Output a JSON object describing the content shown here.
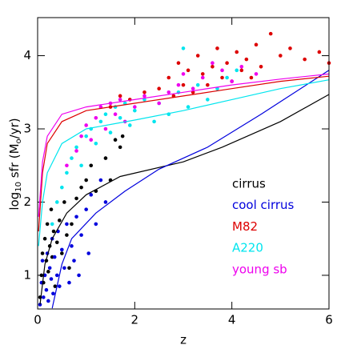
{
  "chart_data": {
    "type": "scatter",
    "xlabel": "z",
    "ylabel_parts": [
      "log",
      "10",
      " sfr  (M",
      "o",
      "/yr)"
    ],
    "xlim": [
      0,
      6
    ],
    "ylim": [
      0.54,
      4.52
    ],
    "xticks": [
      0,
      2,
      4,
      6
    ],
    "yticks": [
      1,
      2,
      3,
      4
    ],
    "series": [
      {
        "name": "cirrus",
        "color": "#000000",
        "x": [
          0.05,
          0.08,
          0.1,
          0.12,
          0.15,
          0.18,
          0.2,
          0.22,
          0.25,
          0.28,
          0.3,
          0.33,
          0.36,
          0.4,
          0.45,
          0.5,
          0.55,
          0.6,
          0.65,
          0.7,
          0.8,
          0.9,
          1.0,
          1.1,
          1.2,
          1.4,
          1.5,
          1.6,
          1.7,
          1.75
        ],
        "y": [
          0.7,
          1.0,
          1.3,
          0.9,
          1.5,
          1.2,
          1.7,
          1.05,
          1.4,
          1.9,
          1.25,
          1.6,
          0.85,
          1.45,
          1.75,
          1.3,
          2.0,
          1.55,
          1.1,
          1.7,
          2.05,
          2.2,
          2.3,
          2.5,
          2.15,
          2.6,
          2.3,
          2.85,
          2.75,
          2.9
        ],
        "curve_x": [
          0.05,
          0.15,
          0.3,
          0.6,
          1.0,
          1.7,
          3.0,
          3.8,
          5.0,
          6.0
        ],
        "curve_y": [
          0.6,
          1.15,
          1.5,
          1.85,
          2.1,
          2.35,
          2.55,
          2.75,
          3.1,
          3.47
        ]
      },
      {
        "name": "cool cirrus",
        "color": "#0000dd",
        "x": [
          0.05,
          0.08,
          0.1,
          0.12,
          0.15,
          0.18,
          0.2,
          0.22,
          0.25,
          0.28,
          0.3,
          0.32,
          0.35,
          0.4,
          0.42,
          0.45,
          0.5,
          0.55,
          0.6,
          0.65,
          0.7,
          0.75,
          0.8,
          0.85,
          0.9,
          1.0,
          1.05,
          1.1,
          1.2,
          1.3,
          1.4
        ],
        "y": [
          0.6,
          0.9,
          1.2,
          0.7,
          1.0,
          0.8,
          1.3,
          0.65,
          1.1,
          0.95,
          1.5,
          0.75,
          1.25,
          1.0,
          1.6,
          0.85,
          1.35,
          1.1,
          1.7,
          0.9,
          1.4,
          1.2,
          1.8,
          1.0,
          1.55,
          1.9,
          1.3,
          2.1,
          1.7,
          2.3,
          2.0
        ],
        "curve_x": [
          0.3,
          0.5,
          0.7,
          1.2,
          1.8,
          2.5,
          3.5,
          4.6,
          6.0
        ],
        "curve_y": [
          0.55,
          1.15,
          1.5,
          1.85,
          2.15,
          2.45,
          2.75,
          3.2,
          3.8
        ]
      },
      {
        "name": "M82",
        "color": "#dd0000",
        "x": [
          1.5,
          1.7,
          1.9,
          2.2,
          2.5,
          2.7,
          2.8,
          2.9,
          3.0,
          3.1,
          3.2,
          3.3,
          3.4,
          3.5,
          3.6,
          3.7,
          3.8,
          3.9,
          4.0,
          4.1,
          4.2,
          4.3,
          4.4,
          4.5,
          4.6,
          4.8,
          5.0,
          5.2,
          5.5,
          5.8,
          6.0
        ],
        "y": [
          3.3,
          3.45,
          3.4,
          3.5,
          3.55,
          3.7,
          3.45,
          3.9,
          3.6,
          3.8,
          3.5,
          4.0,
          3.75,
          3.6,
          3.85,
          4.1,
          3.7,
          3.9,
          3.65,
          4.05,
          3.8,
          3.95,
          3.7,
          4.15,
          3.85,
          4.3,
          4.0,
          4.1,
          3.95,
          4.05,
          3.9
        ],
        "curve_x": [
          0.02,
          0.1,
          0.2,
          0.5,
          1.0,
          2.0,
          3.0,
          4.0,
          5.0,
          6.0
        ],
        "curve_y": [
          1.6,
          2.4,
          2.8,
          3.1,
          3.25,
          3.35,
          3.45,
          3.55,
          3.65,
          3.72
        ]
      },
      {
        "name": "A220",
        "color": "#00e5ee",
        "x": [
          0.3,
          0.4,
          0.5,
          0.6,
          0.7,
          0.8,
          0.9,
          1.0,
          1.1,
          1.2,
          1.3,
          1.4,
          1.5,
          1.6,
          1.7,
          1.8,
          1.9,
          2.0,
          2.2,
          2.4,
          2.5,
          2.7,
          2.9,
          3.0,
          3.1,
          3.3,
          3.5,
          3.7,
          3.9,
          4.1
        ],
        "y": [
          1.7,
          2.0,
          2.2,
          2.4,
          2.6,
          2.75,
          2.5,
          2.9,
          3.0,
          2.8,
          3.1,
          3.2,
          2.95,
          3.3,
          3.15,
          3.35,
          3.05,
          3.25,
          3.4,
          3.1,
          3.35,
          3.2,
          3.5,
          4.1,
          3.3,
          3.6,
          3.4,
          3.55,
          3.7,
          3.8
        ],
        "curve_x": [
          0.02,
          0.1,
          0.2,
          0.5,
          1.0,
          2.0,
          3.0,
          4.0,
          5.0,
          6.0
        ],
        "curve_y": [
          1.4,
          2.0,
          2.4,
          2.8,
          3.0,
          3.12,
          3.25,
          3.4,
          3.55,
          3.67
        ]
      },
      {
        "name": "young sb",
        "color": "#ee00ee",
        "x": [
          0.6,
          0.8,
          0.9,
          1.0,
          1.1,
          1.2,
          1.3,
          1.4,
          1.5,
          1.6,
          1.7,
          1.8,
          2.0,
          2.2,
          2.5,
          2.7,
          2.9,
          3.0,
          3.2,
          3.4,
          3.6,
          3.8,
          4.0,
          4.2,
          4.5
        ],
        "y": [
          2.5,
          2.7,
          2.9,
          3.05,
          2.85,
          3.15,
          3.3,
          3.0,
          3.35,
          3.2,
          3.4,
          3.1,
          3.3,
          3.45,
          3.35,
          3.5,
          3.6,
          3.75,
          3.55,
          3.7,
          3.9,
          3.8,
          3.65,
          3.85,
          3.75
        ],
        "curve_x": [
          0.02,
          0.1,
          0.2,
          0.5,
          1.0,
          2.0,
          3.0,
          4.0,
          5.0,
          6.0
        ],
        "curve_y": [
          1.8,
          2.55,
          2.9,
          3.2,
          3.3,
          3.4,
          3.5,
          3.6,
          3.68,
          3.75
        ]
      }
    ]
  }
}
